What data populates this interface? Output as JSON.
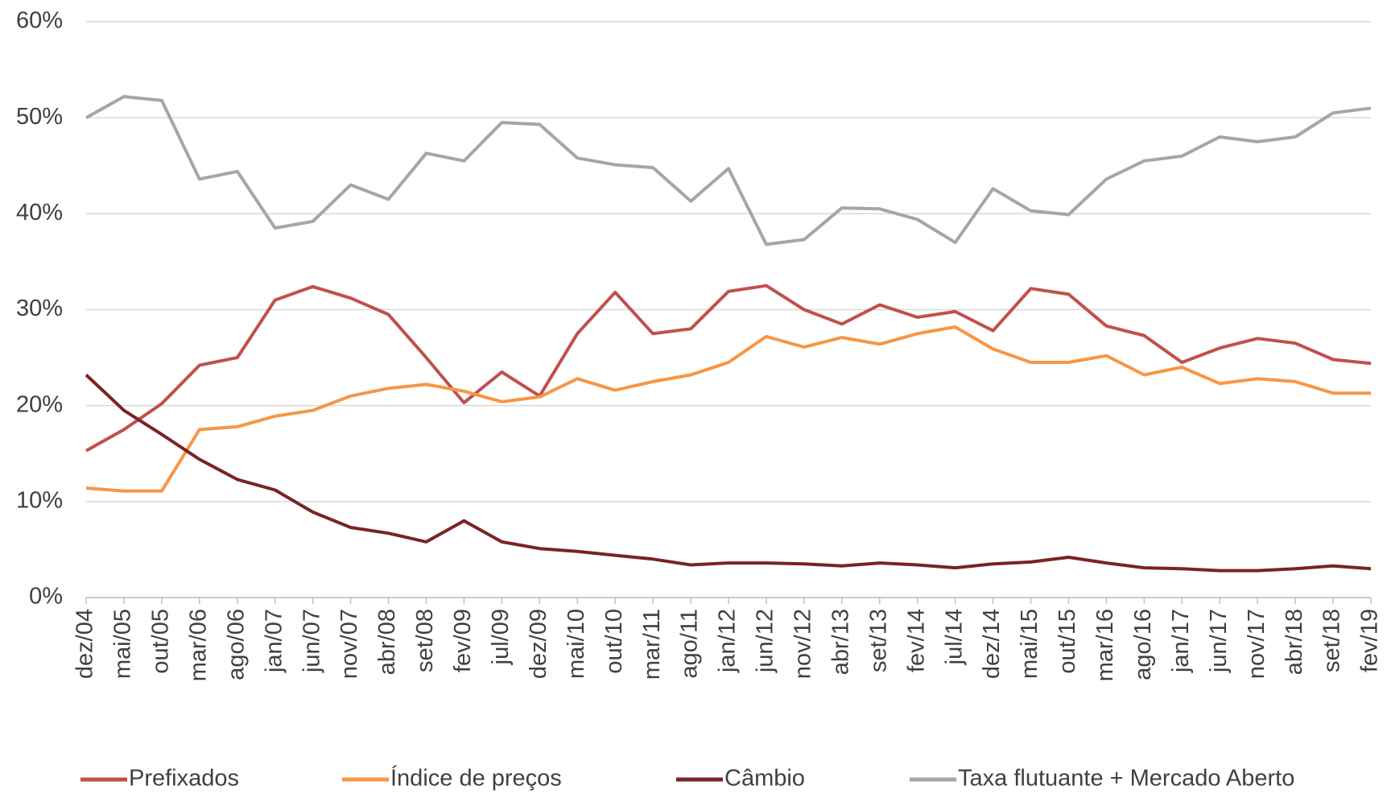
{
  "chart_data": {
    "type": "line",
    "categories": [
      "dez/04",
      "mai/05",
      "out/05",
      "mar/06",
      "ago/06",
      "jan/07",
      "jun/07",
      "nov/07",
      "abr/08",
      "set/08",
      "fev/09",
      "jul/09",
      "dez/09",
      "mai/10",
      "out/10",
      "mar/11",
      "ago/11",
      "jan/12",
      "jun/12",
      "nov/12",
      "abr/13",
      "set/13",
      "fev/14",
      "jul/14",
      "dez/14",
      "mai/15",
      "out/15",
      "mar/16",
      "ago/16",
      "jan/17",
      "jun/17",
      "nov/17",
      "abr/18",
      "set/18",
      "fev/19"
    ],
    "series": [
      {
        "name": "Prefixados",
        "color": "#c0504d",
        "values": [
          15.3,
          17.5,
          20.2,
          24.2,
          25.0,
          31.0,
          32.4,
          31.2,
          29.5,
          25.0,
          20.3,
          23.5,
          21.0,
          27.5,
          31.8,
          27.5,
          28.0,
          31.9,
          32.5,
          30.0,
          28.5,
          30.5,
          29.2,
          29.8,
          27.8,
          32.2,
          31.6,
          28.3,
          27.3,
          24.5,
          26.0,
          27.0,
          26.5,
          24.8,
          24.4
        ]
      },
      {
        "name": "Índice de preços",
        "color": "#f79646",
        "values": [
          11.4,
          11.1,
          11.1,
          17.5,
          17.8,
          18.9,
          19.5,
          21.0,
          21.8,
          22.2,
          21.5,
          20.4,
          20.9,
          22.8,
          21.6,
          22.5,
          23.2,
          24.5,
          27.2,
          26.1,
          27.1,
          26.4,
          27.5,
          28.2,
          25.9,
          24.5,
          24.5,
          25.2,
          23.2,
          24.0,
          22.3,
          22.8,
          22.5,
          21.3,
          21.3
        ]
      },
      {
        "name": "Câmbio",
        "color": "#7b2323",
        "values": [
          23.2,
          19.5,
          17.0,
          14.4,
          12.3,
          11.2,
          8.9,
          7.3,
          6.7,
          5.8,
          8.0,
          5.8,
          5.1,
          4.8,
          4.4,
          4.0,
          3.4,
          3.6,
          3.6,
          3.5,
          3.3,
          3.6,
          3.4,
          3.1,
          3.5,
          3.7,
          4.2,
          3.6,
          3.1,
          3.0,
          2.8,
          2.8,
          3.0,
          3.3,
          3.0
        ]
      },
      {
        "name": "Taxa flutuante + Mercado Aberto",
        "color": "#a6a6a6",
        "values": [
          50.0,
          52.2,
          51.8,
          43.6,
          44.4,
          38.5,
          39.2,
          43.0,
          41.5,
          46.3,
          45.5,
          49.5,
          49.3,
          45.8,
          45.1,
          44.8,
          41.3,
          44.7,
          36.8,
          37.3,
          40.6,
          40.5,
          39.4,
          37.0,
          42.6,
          40.3,
          39.9,
          43.6,
          45.5,
          46.0,
          48.0,
          47.5,
          48.0,
          50.5,
          51.0
        ]
      }
    ],
    "ylim": [
      0,
      60
    ],
    "yticks": [
      {
        "value": 0,
        "label": "0%"
      },
      {
        "value": 10,
        "label": "10%"
      },
      {
        "value": 20,
        "label": "20%"
      },
      {
        "value": 30,
        "label": "30%"
      },
      {
        "value": 40,
        "label": "40%"
      },
      {
        "value": 50,
        "label": "50%"
      },
      {
        "value": 60,
        "label": "60%"
      }
    ],
    "grid": true,
    "legend": "bottom"
  }
}
